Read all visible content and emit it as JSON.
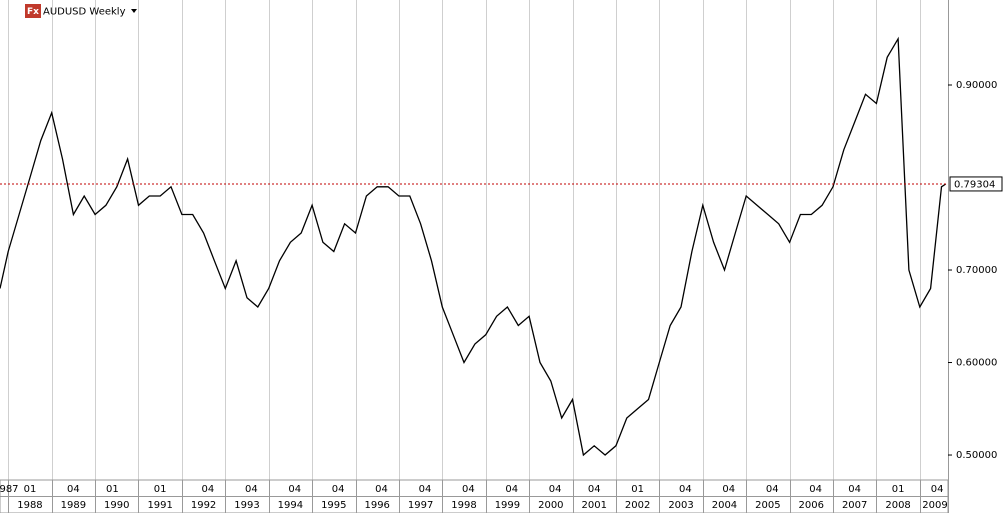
{
  "chart_data": {
    "type": "line",
    "icon_label": "Fx",
    "title": "AUDUSD Weekly",
    "color": "#000000",
    "grid": true,
    "x": [
      1987.81,
      1988.0,
      1988.25,
      1988.5,
      1988.75,
      1989.0,
      1989.25,
      1989.5,
      1989.75,
      1990.0,
      1990.25,
      1990.5,
      1990.75,
      1991.0,
      1991.25,
      1991.5,
      1991.75,
      1992.0,
      1992.25,
      1992.5,
      1992.75,
      1993.0,
      1993.25,
      1993.5,
      1993.75,
      1994.0,
      1994.25,
      1994.5,
      1994.75,
      1995.0,
      1995.25,
      1995.5,
      1995.75,
      1996.0,
      1996.25,
      1996.5,
      1996.75,
      1997.0,
      1997.25,
      1997.5,
      1997.75,
      1998.0,
      1998.25,
      1998.5,
      1998.75,
      1999.0,
      1999.25,
      1999.5,
      1999.75,
      2000.0,
      2000.25,
      2000.5,
      2000.75,
      2001.0,
      2001.25,
      2001.5,
      2001.75,
      2002.0,
      2002.25,
      2002.5,
      2002.75,
      2003.0,
      2003.25,
      2003.5,
      2003.75,
      2004.0,
      2004.25,
      2004.5,
      2004.75,
      2005.0,
      2005.25,
      2005.5,
      2005.75,
      2006.0,
      2006.25,
      2006.5,
      2006.75,
      2007.0,
      2007.25,
      2007.5,
      2007.75,
      2008.0,
      2008.25,
      2008.5,
      2008.75,
      2009.0,
      2009.25,
      2009.5,
      2009.6
    ],
    "values": [
      0.68,
      0.72,
      0.76,
      0.8,
      0.84,
      0.87,
      0.82,
      0.76,
      0.78,
      0.76,
      0.77,
      0.79,
      0.82,
      0.77,
      0.78,
      0.78,
      0.79,
      0.76,
      0.76,
      0.74,
      0.71,
      0.68,
      0.71,
      0.67,
      0.66,
      0.68,
      0.71,
      0.73,
      0.74,
      0.77,
      0.73,
      0.72,
      0.75,
      0.74,
      0.78,
      0.79,
      0.79,
      0.78,
      0.78,
      0.75,
      0.71,
      0.66,
      0.63,
      0.6,
      0.62,
      0.63,
      0.65,
      0.66,
      0.64,
      0.65,
      0.6,
      0.58,
      0.54,
      0.56,
      0.5,
      0.51,
      0.5,
      0.51,
      0.54,
      0.55,
      0.56,
      0.6,
      0.64,
      0.66,
      0.72,
      0.77,
      0.73,
      0.7,
      0.74,
      0.78,
      0.77,
      0.76,
      0.75,
      0.73,
      0.76,
      0.76,
      0.77,
      0.79,
      0.83,
      0.86,
      0.89,
      0.88,
      0.93,
      0.95,
      0.7,
      0.66,
      0.68,
      0.79,
      0.793
    ],
    "xlim": [
      1987.81,
      2009.65
    ],
    "ylim": [
      0.473,
      0.9919
    ],
    "yticks": [
      {
        "value": 0.9,
        "label": "0.90000"
      },
      {
        "value": 0.7,
        "label": "0.70000"
      },
      {
        "value": 0.6,
        "label": "0.60000"
      },
      {
        "value": 0.5,
        "label": "0.50000"
      }
    ],
    "current_price": 0.79304,
    "xgrid": [
      1988,
      1989,
      1990,
      1991,
      1992,
      1993,
      1994,
      1995,
      1996,
      1997,
      1998,
      1999,
      2000,
      2001,
      2002,
      2003,
      2004,
      2005,
      2006,
      2007,
      2008,
      2009
    ],
    "month_labels": [
      {
        "value": 1987.81,
        "label": "987"
      },
      {
        "value": 1988.5,
        "label": "01"
      },
      {
        "value": 1989.5,
        "label": "04"
      },
      {
        "value": 1990.4,
        "label": "01"
      },
      {
        "value": 1991.5,
        "label": "01"
      },
      {
        "value": 1992.6,
        "label": "04"
      },
      {
        "value": 1993.6,
        "label": "04"
      },
      {
        "value": 1994.6,
        "label": "04"
      },
      {
        "value": 1995.6,
        "label": "04"
      },
      {
        "value": 1996.6,
        "label": "04"
      },
      {
        "value": 1997.6,
        "label": "04"
      },
      {
        "value": 1998.6,
        "label": "04"
      },
      {
        "value": 1999.6,
        "label": "04"
      },
      {
        "value": 2000.6,
        "label": "04"
      },
      {
        "value": 2001.5,
        "label": "04"
      },
      {
        "value": 2002.5,
        "label": "01"
      },
      {
        "value": 2003.6,
        "label": "04"
      },
      {
        "value": 2004.6,
        "label": "04"
      },
      {
        "value": 2005.6,
        "label": "04"
      },
      {
        "value": 2006.6,
        "label": "04"
      },
      {
        "value": 2007.5,
        "label": "04"
      },
      {
        "value": 2008.5,
        "label": "01"
      },
      {
        "value": 2009.4,
        "label": "04"
      }
    ],
    "year_labels": [
      {
        "value": 1988.5,
        "label": "1988"
      },
      {
        "value": 1989.5,
        "label": "1989"
      },
      {
        "value": 1990.5,
        "label": "1990"
      },
      {
        "value": 1991.5,
        "label": "1991"
      },
      {
        "value": 1992.5,
        "label": "1992"
      },
      {
        "value": 1993.5,
        "label": "1993"
      },
      {
        "value": 1994.5,
        "label": "1994"
      },
      {
        "value": 1995.5,
        "label": "1995"
      },
      {
        "value": 1996.5,
        "label": "1996"
      },
      {
        "value": 1997.5,
        "label": "1997"
      },
      {
        "value": 1998.5,
        "label": "1998"
      },
      {
        "value": 1999.5,
        "label": "1999"
      },
      {
        "value": 2000.5,
        "label": "2000"
      },
      {
        "value": 2001.5,
        "label": "2001"
      },
      {
        "value": 2002.5,
        "label": "2002"
      },
      {
        "value": 2003.5,
        "label": "2003"
      },
      {
        "value": 2004.5,
        "label": "2004"
      },
      {
        "value": 2005.5,
        "label": "2005"
      },
      {
        "value": 2006.5,
        "label": "2006"
      },
      {
        "value": 2007.5,
        "label": "2007"
      },
      {
        "value": 2008.5,
        "label": "2008"
      },
      {
        "value": 2009.35,
        "label": "2009"
      }
    ]
  }
}
